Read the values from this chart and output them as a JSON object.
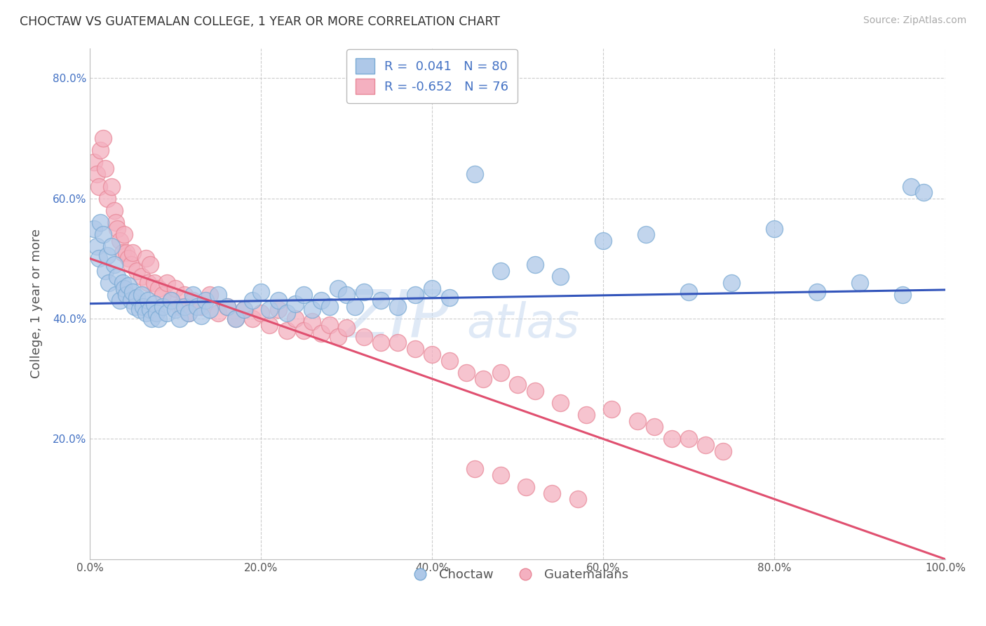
{
  "title": "CHOCTAW VS GUATEMALAN COLLEGE, 1 YEAR OR MORE CORRELATION CHART",
  "source": "Source: ZipAtlas.com",
  "ylabel": "College, 1 year or more",
  "legend_label1": "R =  0.041   N = 80",
  "legend_label2": "R = -0.652   N = 76",
  "legend_bottom1": "Choctaw",
  "legend_bottom2": "Guatemalans",
  "blue_face": "#aec8e8",
  "blue_edge": "#7aaad4",
  "pink_face": "#f4b0c0",
  "pink_edge": "#e88898",
  "blue_line": "#3355bb",
  "pink_line": "#e05070",
  "text_color": "#555555",
  "ytick_color": "#4472c4",
  "watermark_color": "#c5d8f0",
  "xlim": [
    0.0,
    1.0
  ],
  "ylim": [
    0.0,
    0.85
  ],
  "blue_line_x": [
    0.0,
    1.0
  ],
  "blue_line_y": [
    0.425,
    0.448
  ],
  "pink_line_x": [
    0.0,
    1.0
  ],
  "pink_line_y": [
    0.5,
    0.0
  ],
  "blue_x": [
    0.005,
    0.008,
    0.01,
    0.012,
    0.015,
    0.018,
    0.02,
    0.022,
    0.025,
    0.028,
    0.03,
    0.032,
    0.035,
    0.038,
    0.04,
    0.042,
    0.045,
    0.048,
    0.05,
    0.052,
    0.055,
    0.058,
    0.06,
    0.062,
    0.065,
    0.068,
    0.07,
    0.072,
    0.075,
    0.078,
    0.08,
    0.085,
    0.09,
    0.095,
    0.1,
    0.105,
    0.11,
    0.115,
    0.12,
    0.125,
    0.13,
    0.135,
    0.14,
    0.15,
    0.16,
    0.17,
    0.18,
    0.19,
    0.2,
    0.21,
    0.22,
    0.23,
    0.24,
    0.25,
    0.26,
    0.27,
    0.28,
    0.29,
    0.3,
    0.31,
    0.32,
    0.34,
    0.36,
    0.38,
    0.4,
    0.42,
    0.45,
    0.48,
    0.52,
    0.55,
    0.6,
    0.65,
    0.7,
    0.75,
    0.8,
    0.85,
    0.9,
    0.95,
    0.96,
    0.975
  ],
  "blue_y": [
    0.55,
    0.52,
    0.5,
    0.56,
    0.54,
    0.48,
    0.505,
    0.46,
    0.52,
    0.49,
    0.44,
    0.47,
    0.43,
    0.46,
    0.45,
    0.44,
    0.455,
    0.43,
    0.445,
    0.42,
    0.435,
    0.415,
    0.44,
    0.42,
    0.41,
    0.43,
    0.415,
    0.4,
    0.425,
    0.41,
    0.4,
    0.42,
    0.41,
    0.43,
    0.415,
    0.4,
    0.42,
    0.41,
    0.44,
    0.42,
    0.405,
    0.43,
    0.415,
    0.44,
    0.42,
    0.4,
    0.415,
    0.43,
    0.445,
    0.415,
    0.43,
    0.41,
    0.425,
    0.44,
    0.415,
    0.43,
    0.42,
    0.45,
    0.44,
    0.42,
    0.445,
    0.43,
    0.42,
    0.44,
    0.45,
    0.435,
    0.64,
    0.48,
    0.49,
    0.47,
    0.53,
    0.54,
    0.445,
    0.46,
    0.55,
    0.445,
    0.46,
    0.44,
    0.62,
    0.61
  ],
  "pink_x": [
    0.005,
    0.008,
    0.01,
    0.012,
    0.015,
    0.018,
    0.02,
    0.025,
    0.028,
    0.03,
    0.032,
    0.035,
    0.038,
    0.04,
    0.042,
    0.045,
    0.048,
    0.05,
    0.055,
    0.06,
    0.065,
    0.068,
    0.07,
    0.075,
    0.08,
    0.085,
    0.09,
    0.095,
    0.1,
    0.105,
    0.11,
    0.115,
    0.12,
    0.13,
    0.14,
    0.15,
    0.16,
    0.17,
    0.18,
    0.19,
    0.2,
    0.21,
    0.22,
    0.23,
    0.24,
    0.25,
    0.26,
    0.27,
    0.28,
    0.29,
    0.3,
    0.32,
    0.34,
    0.36,
    0.38,
    0.4,
    0.42,
    0.44,
    0.46,
    0.48,
    0.5,
    0.52,
    0.55,
    0.58,
    0.61,
    0.64,
    0.66,
    0.68,
    0.7,
    0.72,
    0.74,
    0.45,
    0.48,
    0.51,
    0.54,
    0.57
  ],
  "pink_y": [
    0.66,
    0.64,
    0.62,
    0.68,
    0.7,
    0.65,
    0.6,
    0.62,
    0.58,
    0.56,
    0.55,
    0.53,
    0.51,
    0.54,
    0.51,
    0.5,
    0.49,
    0.51,
    0.48,
    0.47,
    0.5,
    0.46,
    0.49,
    0.46,
    0.45,
    0.44,
    0.46,
    0.43,
    0.45,
    0.42,
    0.44,
    0.41,
    0.43,
    0.42,
    0.44,
    0.41,
    0.42,
    0.4,
    0.415,
    0.4,
    0.41,
    0.39,
    0.415,
    0.38,
    0.4,
    0.38,
    0.395,
    0.375,
    0.39,
    0.37,
    0.385,
    0.37,
    0.36,
    0.36,
    0.35,
    0.34,
    0.33,
    0.31,
    0.3,
    0.31,
    0.29,
    0.28,
    0.26,
    0.24,
    0.25,
    0.23,
    0.22,
    0.2,
    0.2,
    0.19,
    0.18,
    0.15,
    0.14,
    0.12,
    0.11,
    0.1
  ]
}
